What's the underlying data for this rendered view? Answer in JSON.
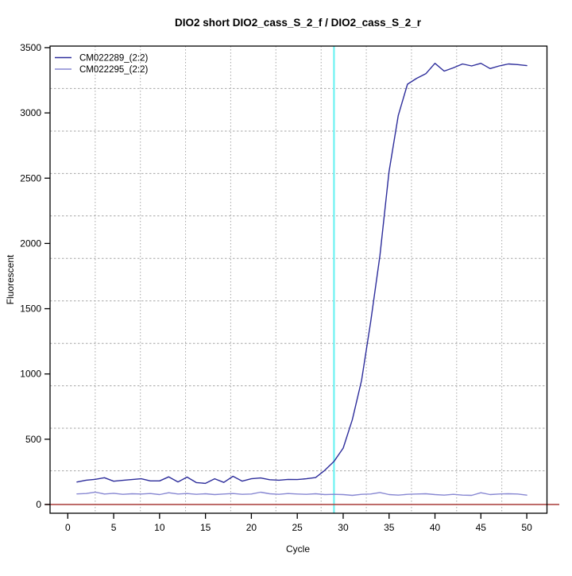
{
  "figure": {
    "background": "#ffffff"
  },
  "chart_data": {
    "type": "line",
    "title": "DIO2 short DIO2_cass_S_2_f / DIO2_cass_S_2_r",
    "xlabel": "Cycle",
    "ylabel": "Fluorescent",
    "xlim": [
      -1.93,
      52.2
    ],
    "ylim": [
      -67,
      3512
    ],
    "x_ticks": [
      0,
      5,
      10,
      15,
      20,
      25,
      30,
      35,
      40,
      45,
      50
    ],
    "y_ticks": [
      0,
      500,
      1000,
      1500,
      2000,
      2500,
      3000,
      3500
    ],
    "grid": {
      "on": true,
      "style": "dotted",
      "color": "#a6a6a6",
      "x_values": [
        2.99,
        7.91,
        12.83,
        17.75,
        22.67,
        27.6,
        32.52,
        37.44,
        42.36,
        47.28
      ],
      "y_values": [
        258,
        584,
        909,
        1234,
        1560,
        1885,
        2211,
        2536,
        2861,
        3187
      ]
    },
    "x": [
      1,
      2,
      3,
      4,
      5,
      6,
      7,
      8,
      9,
      10,
      11,
      12,
      13,
      14,
      15,
      16,
      17,
      18,
      19,
      20,
      21,
      22,
      23,
      24,
      25,
      26,
      27,
      28,
      29,
      30,
      31,
      32,
      33,
      34,
      35,
      36,
      37,
      38,
      39,
      40,
      41,
      42,
      43,
      44,
      45,
      46,
      47,
      48,
      49,
      50
    ],
    "series": [
      {
        "name": "CM022289_(2:2)",
        "color": "#2d2d9b",
        "values": [
          172,
          186,
          193,
          205,
          178,
          185,
          191,
          197,
          181,
          181,
          212,
          173,
          210,
          168,
          162,
          197,
          169,
          216,
          179,
          197,
          203,
          190,
          186,
          192,
          191,
          197,
          206,
          262,
          330,
          432,
          650,
          950,
          1400,
          1905,
          2550,
          2980,
          3220,
          3265,
          3300,
          3380,
          3320,
          3345,
          3375,
          3360,
          3380,
          3340,
          3360,
          3375,
          3370,
          3362
        ]
      },
      {
        "name": "CM022295_(2:2)",
        "color": "#8787d2",
        "values": [
          81,
          84,
          95,
          80,
          86,
          78,
          82,
          80,
          84,
          76,
          90,
          80,
          84,
          78,
          82,
          76,
          80,
          84,
          78,
          80,
          94,
          82,
          78,
          84,
          80,
          78,
          82,
          76,
          78,
          76,
          70,
          78,
          80,
          92,
          76,
          72,
          78,
          80,
          82,
          76,
          72,
          78,
          72,
          70,
          90,
          76,
          80,
          82,
          80,
          72
        ]
      }
    ],
    "threshold_line": {
      "y": 0,
      "color": "#a93c38"
    },
    "ct_line": {
      "x": 29,
      "color": "#6ef2f2"
    },
    "legend": {
      "position": "top-left",
      "entries": [
        "CM022289_(2:2)",
        "CM022295_(2:2)"
      ]
    }
  }
}
